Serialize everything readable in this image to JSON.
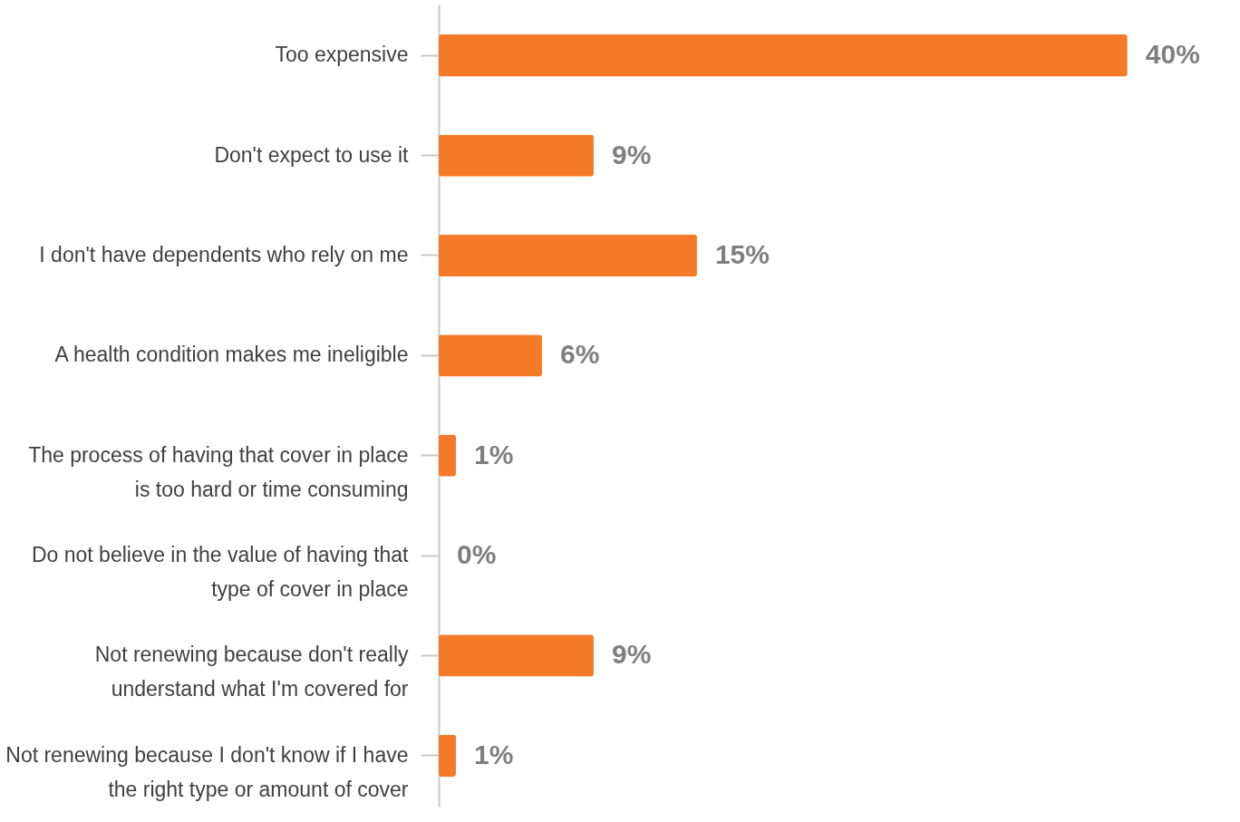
{
  "chart_data": {
    "type": "bar",
    "orientation": "horizontal",
    "categories": [
      "Too expensive",
      "Don't expect to use it",
      "I don't have dependents who rely on me",
      "A health condition makes me ineligible",
      "The process of having that cover in place is too hard or time consuming",
      "Do not believe in the value of having that type of cover in place",
      "Not renewing because don't really understand what I'm covered for",
      "Not renewing because I don't know if I have the right type or amount of cover"
    ],
    "values": [
      40,
      9,
      15,
      6,
      1,
      0,
      9,
      1
    ],
    "value_labels": [
      "40%",
      "9%",
      "15%",
      "6%",
      "1%",
      "0%",
      "9%",
      "1%"
    ],
    "color": "#f47a28"
  }
}
